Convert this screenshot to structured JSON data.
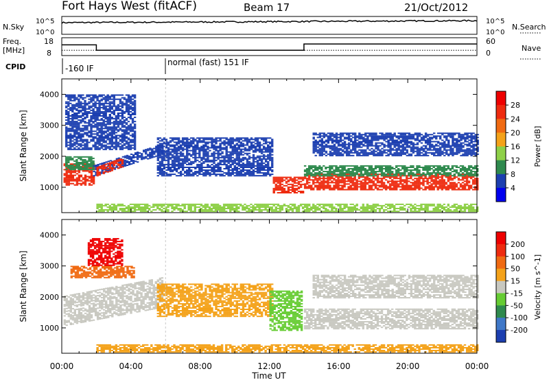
{
  "chart_data": {
    "type": "heatmap",
    "header": {
      "title": "Fort Hays West (fitACF)",
      "beam": "Beam 17",
      "date": "21/Oct/2012"
    },
    "summary": {
      "nsky_label": "N.Sky",
      "nsky_ticks": [
        "10^5",
        "10^0"
      ],
      "nsearch_label": "N.Search",
      "nsearch_ticks": [
        "10^5",
        "10^0"
      ],
      "freq_label": "Freq.",
      "freq_unit": "[MHz]",
      "freq_ticks": [
        "18",
        "8"
      ],
      "nave_label": "Nave",
      "nave_ticks": [
        "60",
        "0"
      ],
      "cpid_label": "CPID",
      "cpid_segments": [
        {
          "start_hour": 0,
          "label": "-160 IF"
        },
        {
          "start_hour": 6,
          "label": "normal (fast) 151 IF"
        }
      ],
      "freq_series": [
        {
          "t": 0,
          "mhz": 14
        },
        {
          "t": 2,
          "mhz": 14
        },
        {
          "t": 2,
          "mhz": 11
        },
        {
          "t": 14,
          "mhz": 11
        },
        {
          "t": 14,
          "mhz": 14.5
        },
        {
          "t": 24,
          "mhz": 14.5
        }
      ],
      "nave_level": 18
    },
    "x_axis": {
      "label": "Time UT",
      "ticks": [
        "00:00",
        "04:00",
        "08:00",
        "12:00",
        "16:00",
        "20:00",
        "00:00"
      ],
      "range_hours": [
        0,
        24
      ]
    },
    "panels": [
      {
        "name": "power",
        "ylabel": "Slant Range [km]",
        "yticks": [
          "4000",
          "3000",
          "2000",
          "1000"
        ],
        "yrange_km": [
          180,
          4500
        ],
        "colorbar_label": "Power [dB]",
        "colorbar_ticks": [
          "28",
          "24",
          "20",
          "16",
          "12",
          "8",
          "4"
        ],
        "colorbar_colors": [
          "#0000ee",
          "#1c3fb0",
          "#2f8a4e",
          "#8ed048",
          "#f4a21a",
          "#f06a12",
          "#ee2b0f",
          "#ee0000"
        ],
        "bands": [
          {
            "t0": 0.1,
            "t1": 1.8,
            "lo": 1050,
            "hi": 1750,
            "drift": 0,
            "color": "#ee2b0f"
          },
          {
            "t0": 0.2,
            "t1": 1.8,
            "lo": 1550,
            "hi": 2000,
            "drift": 0,
            "color": "#2f8a4e"
          },
          {
            "t0": 1.8,
            "t1": 5.8,
            "lo": 1350,
            "hi": 1700,
            "drift": 700,
            "color": "#1c3fb0"
          },
          {
            "t0": 2.0,
            "t1": 3.5,
            "lo": 1350,
            "hi": 1650,
            "drift": 300,
            "color": "#ee2b0f"
          },
          {
            "t0": 0.2,
            "t1": 4.2,
            "lo": 2200,
            "hi": 4000,
            "drift": 0,
            "color": "#1c3fb0"
          },
          {
            "t0": 5.5,
            "t1": 12.2,
            "lo": 1350,
            "hi": 2600,
            "drift": 0,
            "color": "#1c3fb0"
          },
          {
            "t0": 12.2,
            "t1": 13.9,
            "lo": 800,
            "hi": 1300,
            "drift": 0,
            "color": "#ee2b0f"
          },
          {
            "t0": 14.0,
            "t1": 24.0,
            "lo": 900,
            "hi": 1400,
            "drift": 0,
            "color": "#ee2b0f"
          },
          {
            "t0": 14.0,
            "t1": 24.0,
            "lo": 1350,
            "hi": 1700,
            "drift": 0,
            "color": "#2f8a4e"
          },
          {
            "t0": 14.5,
            "t1": 24.0,
            "lo": 2000,
            "hi": 2750,
            "drift": 0,
            "color": "#1c3fb0"
          },
          {
            "t0": 2.0,
            "t1": 24.0,
            "lo": 200,
            "hi": 450,
            "drift": 0,
            "color": "#8ed048"
          }
        ]
      },
      {
        "name": "velocity",
        "ylabel": "Slant Range [km]",
        "yticks": [
          "4000",
          "3000",
          "2000",
          "1000"
        ],
        "yrange_km": [
          180,
          4500
        ],
        "colorbar_label": "Velocity [m s^-1]",
        "colorbar_ticks": [
          "200",
          "100",
          "50",
          "15",
          "-15",
          "-50",
          "-100",
          "-200"
        ],
        "colorbar_colors": [
          "#1c3fb0",
          "#3f78c8",
          "#2f8a4e",
          "#66cc33",
          "#c8c8c0",
          "#f4a21a",
          "#f06a12",
          "#ee2b0f",
          "#ee0000"
        ],
        "bands": [
          {
            "t0": 0.1,
            "t1": 5.8,
            "lo": 1050,
            "hi": 2000,
            "drift": 600,
            "color": "#c8c8c0"
          },
          {
            "t0": 0.5,
            "t1": 4.2,
            "lo": 2600,
            "hi": 3000,
            "drift": 0,
            "color": "#f06a12"
          },
          {
            "t0": 1.5,
            "t1": 3.5,
            "lo": 3000,
            "hi": 3900,
            "drift": 0,
            "color": "#ee0000"
          },
          {
            "t0": 5.5,
            "t1": 12.2,
            "lo": 1350,
            "hi": 2400,
            "drift": 0,
            "color": "#f4a21a"
          },
          {
            "t0": 12.0,
            "t1": 13.9,
            "lo": 900,
            "hi": 2200,
            "drift": 0,
            "color": "#66cc33"
          },
          {
            "t0": 14.0,
            "t1": 24.0,
            "lo": 950,
            "hi": 1600,
            "drift": 0,
            "color": "#c8c8c0"
          },
          {
            "t0": 14.5,
            "t1": 24.0,
            "lo": 1950,
            "hi": 2700,
            "drift": 0,
            "color": "#c8c8c0"
          },
          {
            "t0": 2.0,
            "t1": 24.0,
            "lo": 200,
            "hi": 450,
            "drift": 0,
            "color": "#f4a21a"
          }
        ]
      }
    ]
  }
}
